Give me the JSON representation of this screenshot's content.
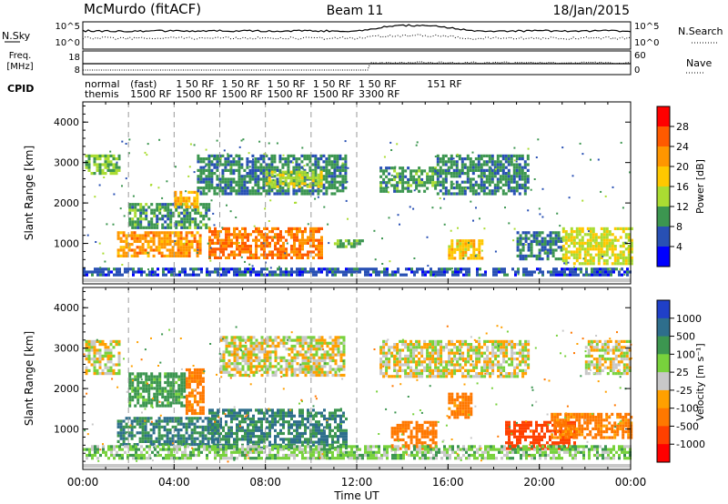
{
  "header": {
    "station": "McMurdo (fitACF)",
    "beam": "Beam 11",
    "date": "18/Jan/2015"
  },
  "noise_panel": {
    "left_label": "N.Sky",
    "right_label": "N.Search",
    "left_ticks": [
      "10^5",
      "10^0"
    ],
    "right_ticks": [
      "10^5",
      "10^0"
    ]
  },
  "freq_panel": {
    "left_label": "Freq.",
    "left_unit": "[MHz]",
    "left_ticks": [
      "18",
      "8"
    ],
    "right_label": "Nave",
    "right_ticks": [
      "60",
      "0"
    ]
  },
  "cpid_panel": {
    "label": "CPID",
    "modes": [
      {
        "line1": "normal",
        "line2": "themis"
      },
      {
        "line1": "(fast)",
        "line2": "1500 RF"
      },
      {
        "line1": "1 50 RF",
        "line2": "1500 RF"
      },
      {
        "line1": "1 50 RF",
        "line2": "1500 RF"
      },
      {
        "line1": "1 50 RF",
        "line2": "1500 RF"
      },
      {
        "line1": "1 50 RF",
        "line2": "1500 RF"
      },
      {
        "line1": "1 50 RF",
        "line2": "3300 RF"
      },
      {
        "line1": "151 RF",
        "line2": ""
      }
    ]
  },
  "x_axis": {
    "title": "Time UT",
    "ticks": [
      "00:00",
      "04:00",
      "08:00",
      "12:00",
      "16:00",
      "20:00",
      "00:00"
    ]
  },
  "power_scale": {
    "title": "Power [dB]",
    "ticks": [
      "28",
      "24",
      "20",
      "16",
      "12",
      "8",
      "4"
    ],
    "colors": [
      "#ff0000",
      "#ff5a00",
      "#ff9600",
      "#ffc800",
      "#aadc32",
      "#3c9650",
      "#2850b4",
      "#0000ff"
    ]
  },
  "velocity_scale": {
    "title": "Velocity [m s⁻¹]",
    "ticks": [
      "1000",
      "500",
      "100",
      "25",
      "-25",
      "-100",
      "-500",
      "-1000"
    ],
    "colors": [
      "#2040c8",
      "#2e6e8c",
      "#3c9650",
      "#78d23c",
      "#c8c8c8",
      "#ffa000",
      "#ff7800",
      "#ff4000",
      "#ff0000"
    ]
  },
  "chart_data": [
    {
      "type": "heatmap",
      "quantity": "Power",
      "xlabel": "Time UT",
      "ylabel": "Slant Range [km]",
      "xlim": [
        0,
        24
      ],
      "ylim": [
        0,
        4500
      ],
      "yticks": [
        1000,
        2000,
        3000,
        4000
      ],
      "colorbar": {
        "label": "Power [dB]",
        "range": [
          0,
          32
        ]
      },
      "regions": [
        {
          "t": [
            0.1,
            1.6
          ],
          "r": [
            2700,
            3200
          ],
          "v": 12
        },
        {
          "t": [
            1.5,
            5.2
          ],
          "r": [
            700,
            1300
          ],
          "v": 22
        },
        {
          "t": [
            2.0,
            5.5
          ],
          "r": [
            1400,
            2000
          ],
          "v": 10
        },
        {
          "t": [
            4.0,
            5.0
          ],
          "r": [
            1900,
            2300
          ],
          "v": 20
        },
        {
          "t": [
            5.5,
            10.5
          ],
          "r": [
            650,
            1400
          ],
          "v": 24
        },
        {
          "t": [
            5.0,
            11.5
          ],
          "r": [
            2200,
            3200
          ],
          "v": 9
        },
        {
          "t": [
            8.0,
            10.5
          ],
          "r": [
            2400,
            2800
          ],
          "v": 15
        },
        {
          "t": [
            11.0,
            12.3
          ],
          "r": [
            900,
            1100
          ],
          "v": 11
        },
        {
          "t": [
            13.0,
            15.5
          ],
          "r": [
            2300,
            2900
          ],
          "v": 10
        },
        {
          "t": [
            15.5,
            19.5
          ],
          "r": [
            2200,
            3200
          ],
          "v": 9
        },
        {
          "t": [
            16.0,
            17.5
          ],
          "r": [
            600,
            1100
          ],
          "v": 18
        },
        {
          "t": [
            19.0,
            21.0
          ],
          "r": [
            600,
            1300
          ],
          "v": 8
        },
        {
          "t": [
            21.0,
            24.0
          ],
          "r": [
            500,
            1400
          ],
          "v": 16
        },
        {
          "t": [
            0.0,
            24.0
          ],
          "r": [
            200,
            400
          ],
          "v": 6
        }
      ]
    },
    {
      "type": "heatmap",
      "quantity": "Velocity",
      "xlabel": "Time UT",
      "ylabel": "Slant Range [km]",
      "xlim": [
        0,
        24
      ],
      "ylim": [
        0,
        4500
      ],
      "yticks": [
        1000,
        2000,
        3000,
        4000
      ],
      "colorbar": {
        "label": "Velocity [m s⁻¹]",
        "range": [
          -1000,
          1000
        ]
      },
      "regions": [
        {
          "t": [
            0.1,
            1.6
          ],
          "r": [
            2400,
            3200
          ],
          "v": 0
        },
        {
          "t": [
            1.5,
            6.0
          ],
          "r": [
            600,
            1300
          ],
          "v": 300
        },
        {
          "t": [
            2.0,
            4.5
          ],
          "r": [
            1600,
            2400
          ],
          "v": 150
        },
        {
          "t": [
            4.5,
            5.3
          ],
          "r": [
            1400,
            2500
          ],
          "v": -150
        },
        {
          "t": [
            5.5,
            11.5
          ],
          "r": [
            500,
            1500
          ],
          "v": 300
        },
        {
          "t": [
            6.0,
            11.5
          ],
          "r": [
            2300,
            3300
          ],
          "v": 0
        },
        {
          "t": [
            13.0,
            19.5
          ],
          "r": [
            2300,
            3200
          ],
          "v": 0
        },
        {
          "t": [
            13.5,
            15.5
          ],
          "r": [
            500,
            1200
          ],
          "v": -200
        },
        {
          "t": [
            16.0,
            17.0
          ],
          "r": [
            1300,
            1900
          ],
          "v": -150
        },
        {
          "t": [
            18.5,
            21.5
          ],
          "r": [
            500,
            1200
          ],
          "v": -600
        },
        {
          "t": [
            20.5,
            24.0
          ],
          "r": [
            800,
            1400
          ],
          "v": -150
        },
        {
          "t": [
            22.0,
            24.0
          ],
          "r": [
            2400,
            3200
          ],
          "v": 0
        },
        {
          "t": [
            0.0,
            24.0
          ],
          "r": [
            300,
            600
          ],
          "v": 60
        }
      ]
    }
  ]
}
